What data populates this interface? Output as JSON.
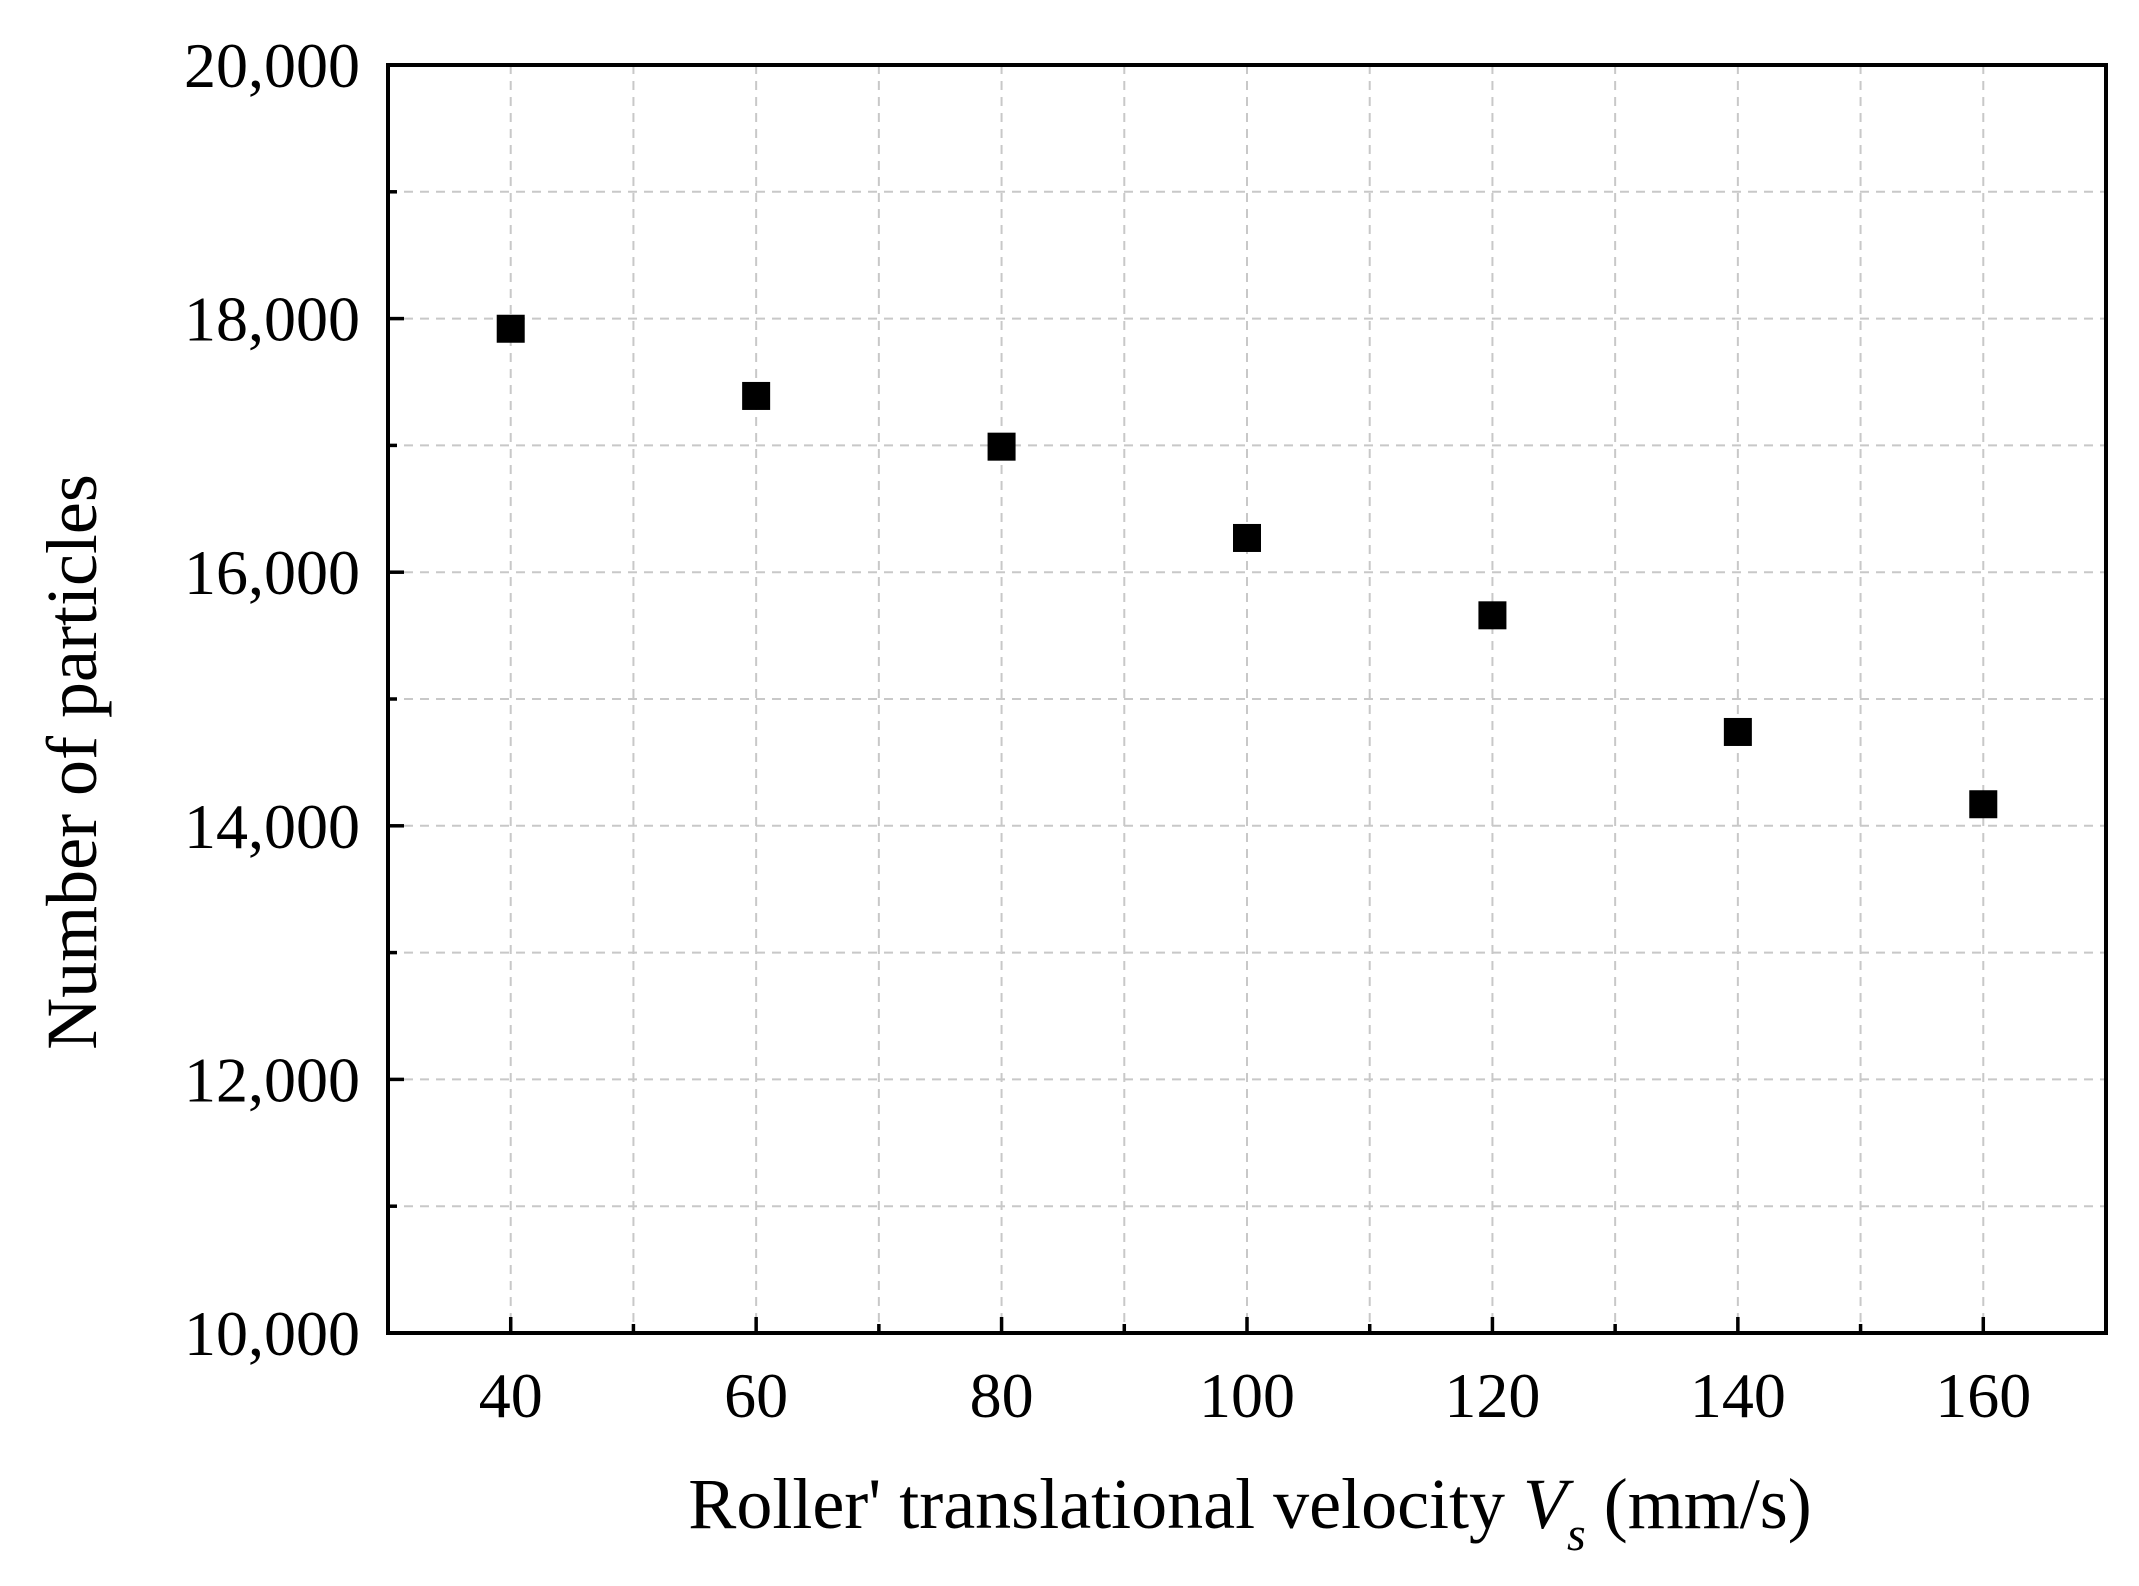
{
  "chart_data": {
    "type": "scatter",
    "title": "",
    "xlabel": "Roller' translational velocity",
    "xlabel_var": "V",
    "xlabel_sub": "s",
    "xlabel_unit": "(mm/s)",
    "ylabel": "Number of particles",
    "xlim": [
      30,
      170
    ],
    "ylim": [
      10000,
      20000
    ],
    "x_major_ticks": [
      40,
      60,
      80,
      100,
      120,
      140,
      160
    ],
    "x_tick_labels": [
      "40",
      "60",
      "80",
      "100",
      "120",
      "140",
      "160"
    ],
    "x_minor_ticks": [
      50,
      70,
      90,
      110,
      130,
      150
    ],
    "y_major_ticks": [
      10000,
      12000,
      14000,
      16000,
      18000,
      20000
    ],
    "y_tick_labels": [
      "10,000",
      "12,000",
      "14,000",
      "16,000",
      "18,000",
      "20,000"
    ],
    "y_minor_ticks": [
      11000,
      13000,
      15000,
      17000,
      19000
    ],
    "grid": true,
    "marker": "square",
    "marker_color": "#000000",
    "series": [
      {
        "name": "Number of particles",
        "x": [
          40,
          60,
          80,
          100,
          120,
          140,
          160
        ],
        "y": [
          17920,
          17390,
          16990,
          16270,
          15660,
          14740,
          14170
        ]
      }
    ]
  }
}
